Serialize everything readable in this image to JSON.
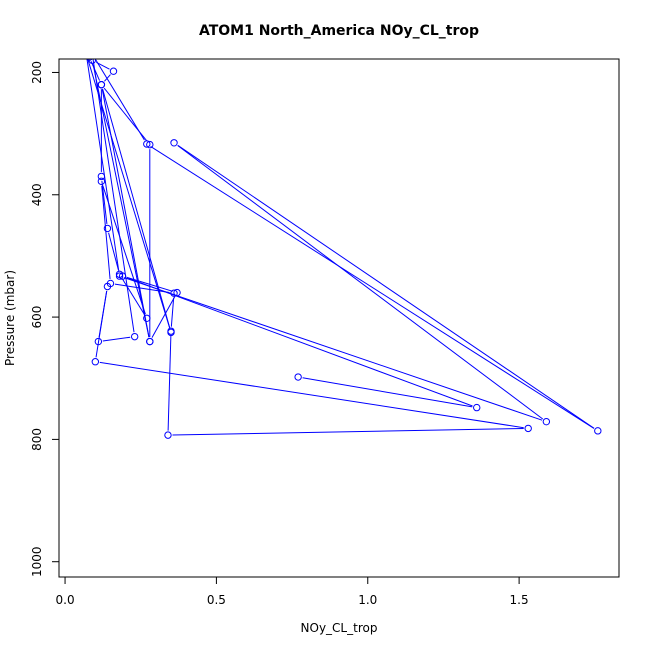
{
  "chart_data": {
    "type": "line",
    "title": "ATOM1 North_America NOy_CL_trop",
    "xlabel": "NOy_CL_trop",
    "ylabel": "Pressure (mbar)",
    "xlim": [
      -0.02,
      1.83
    ],
    "ylim": [
      1025,
      178
    ],
    "y_reversed": true,
    "xticks": [
      0.0,
      0.5,
      1.0,
      1.5
    ],
    "xtick_labels": [
      "0.0",
      "0.5",
      "1.0",
      "1.5"
    ],
    "yticks": [
      200,
      400,
      600,
      800,
      1000
    ],
    "ytick_labels": [
      "200",
      "400",
      "600",
      "800",
      "1000"
    ],
    "grid": false,
    "color": "#0000ff",
    "series": [
      {
        "x": [
          0.08,
          0.12,
          0.12,
          0.14,
          0.18,
          0.27,
          0.12,
          0.15,
          0.36,
          0.35,
          0.34,
          1.53,
          0.1,
          0.14,
          0.11,
          0.23,
          0.09,
          0.27,
          1.76,
          0.36,
          1.59,
          0.18,
          0.07,
          0.35,
          0.12,
          0.28,
          0.28,
          0.09,
          0.16,
          0.12,
          0.28,
          0.37,
          0.19,
          1.36,
          0.77
        ],
        "y": [
          175,
          220,
          370,
          455,
          530,
          602,
          378,
          545,
          561,
          623,
          793,
          782,
          673,
          550,
          640,
          632,
          170,
          317,
          786,
          315,
          771,
          533,
          170,
          625,
          220,
          318,
          640,
          180,
          198,
          220,
          640,
          560,
          533,
          748,
          698
        ]
      }
    ]
  }
}
